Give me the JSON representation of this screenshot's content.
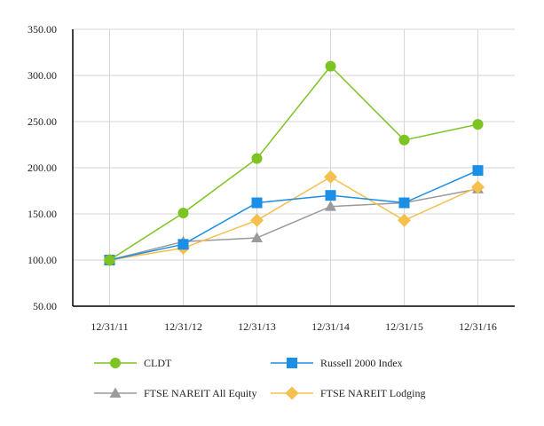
{
  "chart_data": {
    "type": "line",
    "categories": [
      "12/31/11",
      "12/31/12",
      "12/31/13",
      "12/31/14",
      "12/31/15",
      "12/31/16"
    ],
    "ylim": [
      50,
      350
    ],
    "yticks": [
      "50.00",
      "100.00",
      "150.00",
      "200.00",
      "250.00",
      "300.00",
      "350.00"
    ],
    "ytick_values": [
      50,
      100,
      150,
      200,
      250,
      300,
      350
    ],
    "grid": true,
    "legend_position": "bottom",
    "series": [
      {
        "name": "CLDT",
        "color": "#7dc322",
        "marker": "circle",
        "values": [
          100,
          151,
          210,
          310,
          230,
          247
        ]
      },
      {
        "name": "Russell 2000 Index",
        "color": "#1c8ee6",
        "marker": "square",
        "values": [
          100,
          117,
          162,
          170,
          162,
          197
        ]
      },
      {
        "name": "FTSE NAREIT All Equity",
        "color": "#9a9a9a",
        "marker": "triangle",
        "values": [
          100,
          120,
          124,
          158,
          162,
          177
        ]
      },
      {
        "name": "FTSE NAREIT Lodging",
        "color": "#f5c04e",
        "marker": "diamond",
        "values": [
          100,
          113,
          143,
          190,
          143,
          179
        ]
      }
    ]
  }
}
